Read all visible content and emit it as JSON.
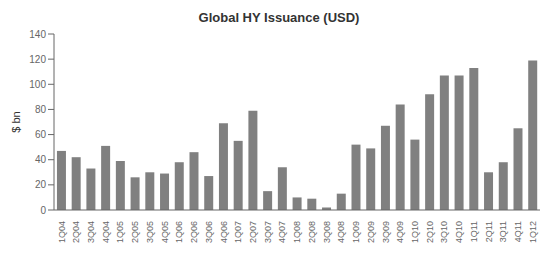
{
  "chart_data": {
    "type": "bar",
    "title": "Global HY Issuance (USD)",
    "ylabel": "$ bn",
    "categories": [
      "1Q04",
      "2Q04",
      "3Q04",
      "4Q04",
      "1Q05",
      "2Q05",
      "3Q05",
      "4Q05",
      "1Q06",
      "2Q06",
      "3Q06",
      "4Q06",
      "1Q07",
      "2Q07",
      "3Q07",
      "4Q07",
      "1Q08",
      "2Q08",
      "3Q08",
      "4Q08",
      "1Q09",
      "2Q09",
      "3Q09",
      "4Q09",
      "1Q10",
      "2Q10",
      "3Q10",
      "4Q10",
      "1Q11",
      "2Q11",
      "3Q11",
      "4Q11",
      "1Q12"
    ],
    "values": [
      47,
      42,
      33,
      51,
      39,
      26,
      30,
      29,
      38,
      46,
      27,
      69,
      55,
      79,
      15,
      34,
      10,
      9,
      2,
      13,
      52,
      49,
      67,
      84,
      56,
      92,
      107,
      107,
      113,
      30,
      38,
      65,
      119
    ],
    "color": "#808080",
    "ylim": [
      0,
      140
    ],
    "yticks": [
      0,
      20,
      40,
      60,
      80,
      100,
      120,
      140
    ],
    "grid": false
  }
}
